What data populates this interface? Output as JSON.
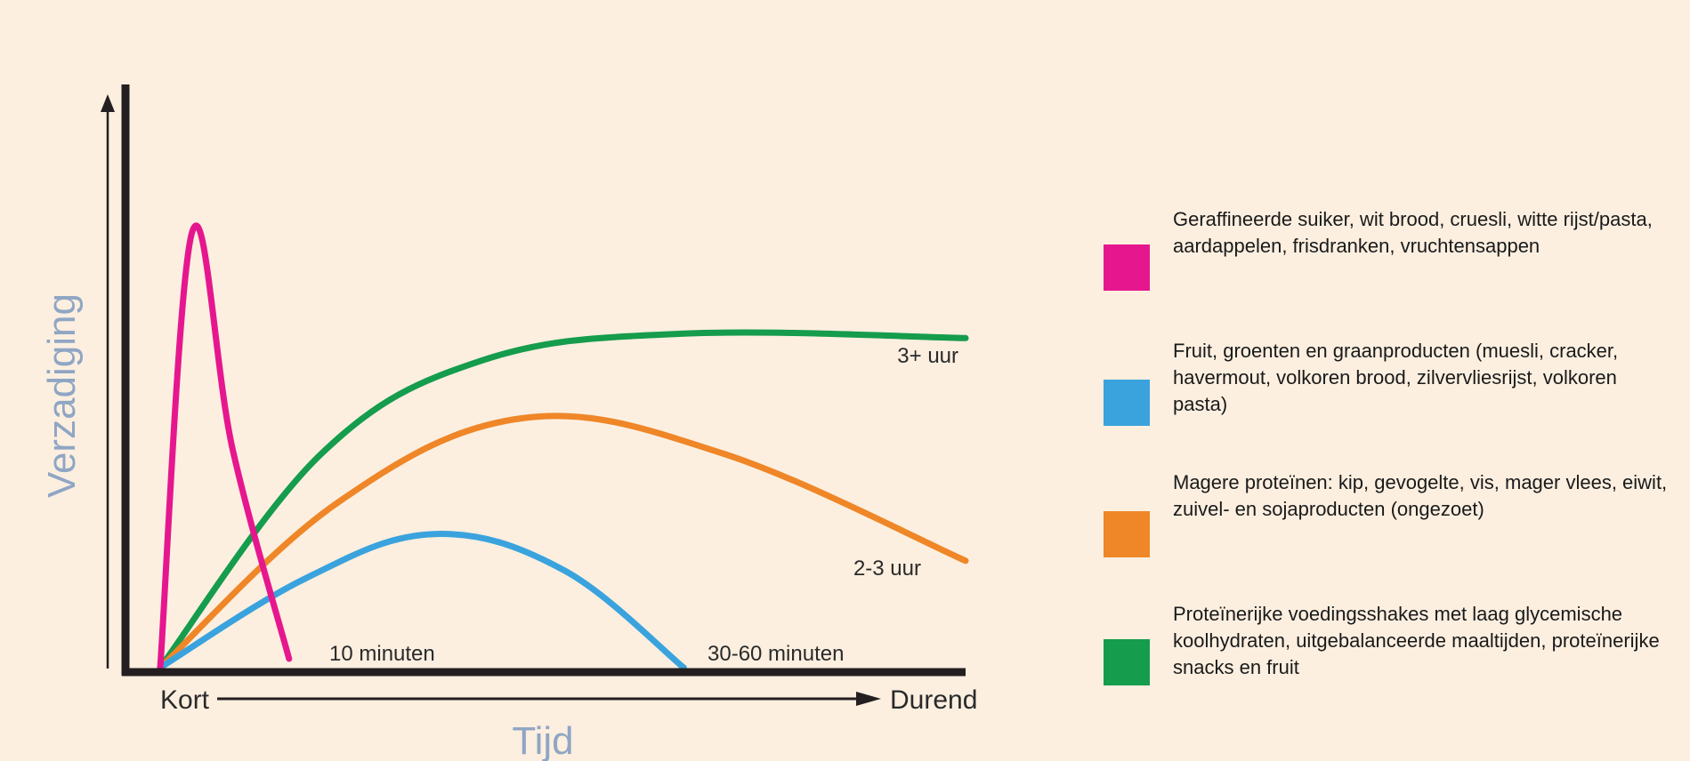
{
  "chart_data": {
    "type": "line",
    "title": "",
    "ylabel": "Verzadiging",
    "xlabel": "Tijd",
    "x_start_label": "Kort",
    "x_end_label": "Durend",
    "xlim": [
      0,
      100
    ],
    "ylim": [
      0,
      100
    ],
    "grid": false,
    "legend_position": "right",
    "series": [
      {
        "name": "Geraffineerde suiker, wit brood, cruesli, witte rijst/pasta, aardappelen, frisdranken, vruchtensappen",
        "color": "#e6178e",
        "end_label": "10 minuten",
        "points": [
          [
            0,
            0
          ],
          [
            4,
            98
          ],
          [
            9,
            49
          ],
          [
            16,
            2
          ]
        ]
      },
      {
        "name": "Fruit, groenten en graanproducten (muesli, cracker, havermout, volkoren brood, zilvervliesrijst, volkoren pasta)",
        "color": "#3aa3dd",
        "end_label": "30-60 minuten",
        "points": [
          [
            0,
            0
          ],
          [
            18,
            20
          ],
          [
            34,
            30
          ],
          [
            50,
            22
          ],
          [
            65,
            0
          ]
        ]
      },
      {
        "name": "Magere proteïnen: kip, gevogelte, vis, mager vlees, eiwit, zuivel- en sojaproducten (ongezoet)",
        "color": "#ef8627",
        "end_label": "2-3 uur",
        "points": [
          [
            0,
            0
          ],
          [
            22,
            37
          ],
          [
            45,
            56
          ],
          [
            70,
            48
          ],
          [
            100,
            24
          ]
        ]
      },
      {
        "name": "Proteïnerijke voedingsshakes met laag glycemische koolhydraten, uitgebalanceerde maaltijden, proteïnerijke snacks en fruit",
        "color": "#159c4c",
        "end_label": "3+ uur",
        "points": [
          [
            0,
            0
          ],
          [
            20,
            48
          ],
          [
            40,
            69
          ],
          [
            65,
            75
          ],
          [
            100,
            74
          ]
        ]
      }
    ]
  }
}
